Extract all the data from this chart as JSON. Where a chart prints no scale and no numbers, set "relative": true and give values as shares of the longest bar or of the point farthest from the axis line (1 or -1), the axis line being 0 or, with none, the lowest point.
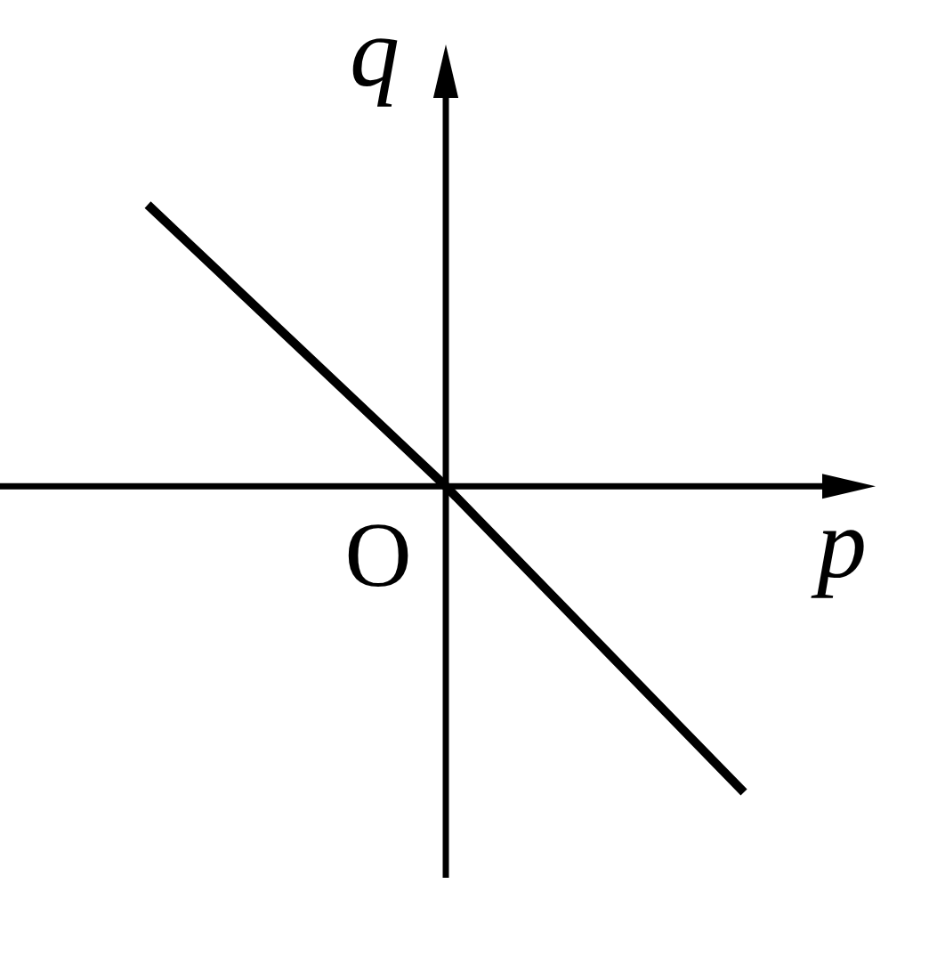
{
  "chart_data": {
    "type": "line",
    "relative": true,
    "categories": [
      null,
      null,
      null
    ],
    "values": [
      0.92,
      0,
      -1
    ],
    "color": "#000000",
    "xlabel": "p",
    "ylabel": "q",
    "annotations": [
      "O"
    ],
    "marker": "none",
    "grid": false,
    "legend": false
  }
}
